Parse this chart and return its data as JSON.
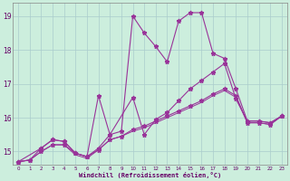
{
  "xlabel": "Windchill (Refroidissement éolien,°C)",
  "bg_color": "#cceedd",
  "grid_color": "#aacccc",
  "line_color": "#993399",
  "xlim": [
    -0.5,
    23.5
  ],
  "ylim": [
    14.6,
    19.4
  ],
  "yticks": [
    15,
    16,
    17,
    18,
    19
  ],
  "xticks": [
    0,
    1,
    2,
    3,
    4,
    5,
    6,
    7,
    8,
    9,
    10,
    11,
    12,
    13,
    14,
    15,
    16,
    17,
    18,
    19,
    20,
    21,
    22,
    23
  ],
  "line1_x": [
    0,
    1,
    2,
    3,
    4,
    5,
    6,
    7,
    8,
    9,
    10,
    11,
    12,
    13,
    14,
    15,
    16,
    17,
    18,
    19,
    20,
    21,
    22,
    23
  ],
  "line1_y": [
    14.7,
    14.75,
    15.1,
    15.35,
    15.3,
    14.95,
    14.85,
    16.65,
    15.5,
    15.6,
    19.0,
    18.5,
    18.1,
    17.65,
    18.85,
    19.1,
    19.1,
    17.9,
    17.75,
    16.85,
    15.9,
    15.9,
    15.85,
    16.05
  ],
  "line2_x": [
    0,
    2,
    3,
    4,
    5,
    6,
    7,
    8,
    10,
    11,
    12,
    13,
    14,
    15,
    16,
    17,
    18,
    19,
    20,
    21,
    22,
    23
  ],
  "line2_y": [
    14.7,
    15.1,
    15.35,
    15.3,
    14.95,
    14.85,
    15.1,
    15.5,
    16.6,
    15.5,
    15.95,
    16.15,
    16.5,
    16.85,
    17.1,
    17.35,
    17.6,
    16.55,
    15.9,
    15.9,
    15.85,
    16.05
  ],
  "line3_x": [
    0,
    1,
    2,
    3,
    4,
    5,
    6,
    7,
    8,
    9,
    10,
    11,
    12,
    13,
    14,
    15,
    16,
    17,
    18,
    19,
    20,
    21,
    22,
    23
  ],
  "line3_y": [
    14.7,
    14.75,
    15.0,
    15.2,
    15.2,
    14.95,
    14.85,
    15.05,
    15.35,
    15.45,
    15.65,
    15.75,
    15.9,
    16.05,
    16.2,
    16.35,
    16.5,
    16.7,
    16.85,
    16.65,
    15.85,
    15.85,
    15.8,
    16.05
  ],
  "line4_x": [
    0,
    1,
    2,
    3,
    4,
    5,
    6,
    7,
    8,
    9,
    10,
    11,
    12,
    13,
    14,
    15,
    16,
    17,
    18,
    19,
    20,
    21,
    22,
    23
  ],
  "line4_y": [
    14.7,
    14.75,
    15.0,
    15.2,
    15.2,
    14.9,
    14.8,
    15.05,
    15.35,
    15.45,
    15.6,
    15.7,
    15.85,
    16.0,
    16.15,
    16.3,
    16.45,
    16.65,
    16.8,
    16.6,
    15.85,
    15.85,
    15.8,
    16.05
  ]
}
